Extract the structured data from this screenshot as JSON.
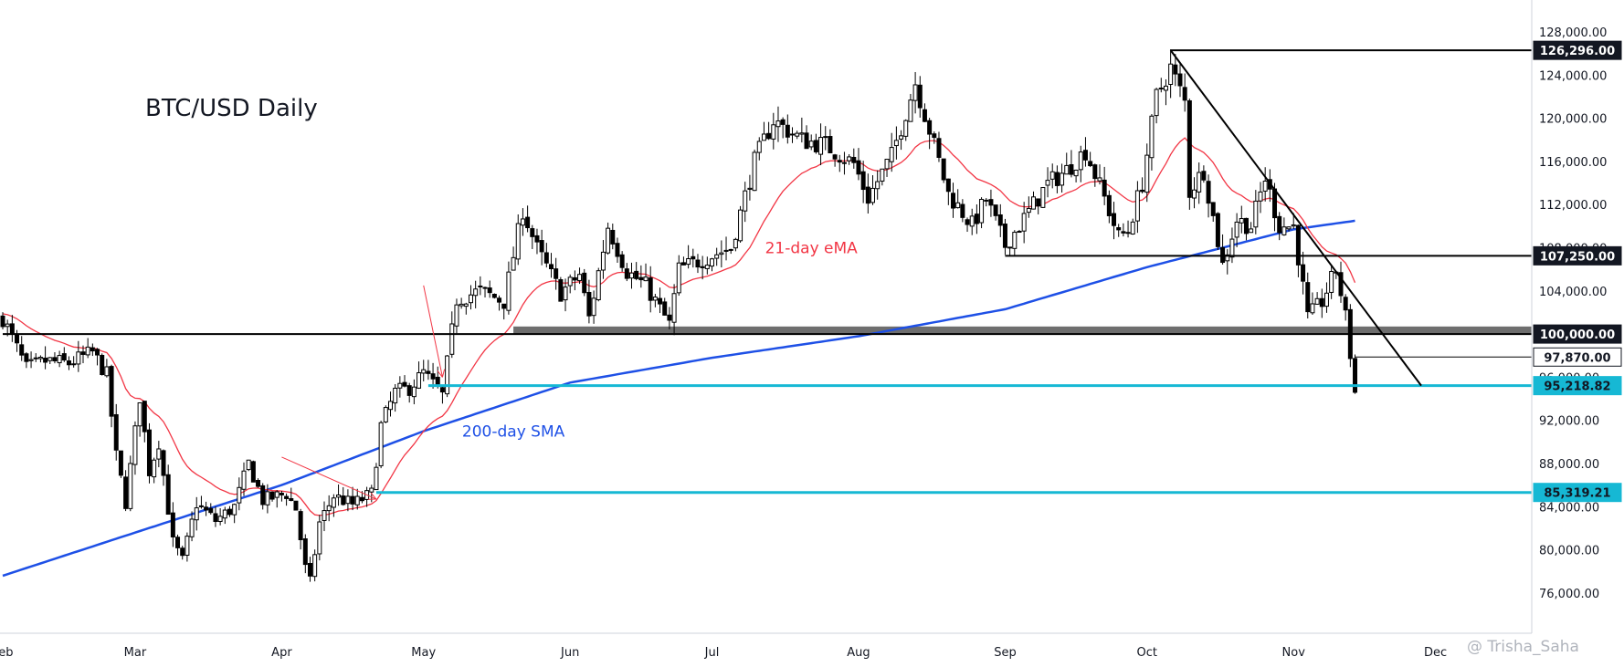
{
  "colors": {
    "candle": "#000000",
    "ema": "#f23645",
    "sma": "#1e50e6",
    "support": "#16b8d4",
    "zone": "#6e6e6e",
    "axis": "#cfd3db",
    "text": "#131722"
  },
  "watermark": "@ Trisha_Saha",
  "chart_data": {
    "type": "candlestick",
    "title": "BTC/USD Daily",
    "x_axis": {
      "ticks": [
        "Feb",
        "Mar",
        "Apr",
        "May",
        "Jun",
        "Jul",
        "Aug",
        "Sep",
        "Oct",
        "Nov",
        "Dec"
      ],
      "range": [
        "2025-02-01",
        "2025-12-01"
      ]
    },
    "y_axis": {
      "position": "right",
      "range": [
        72000,
        130000
      ],
      "ticks": [
        "128,000.00",
        "124,000.00",
        "120,000.00",
        "116,000.00",
        "112,000.00",
        "108,000.00",
        "104,000.00",
        "100,000.00",
        "96,000.00",
        "92,000.00",
        "88,000.00",
        "84,000.00",
        "80,000.00",
        "76,000.00"
      ],
      "tick_values": [
        128000,
        124000,
        120000,
        116000,
        112000,
        108000,
        104000,
        100000,
        96000,
        92000,
        88000,
        84000,
        80000,
        76000
      ]
    },
    "close_path": [
      [
        "2025-02-01",
        101500
      ],
      [
        "2025-02-06",
        96800
      ],
      [
        "2025-02-10",
        97500
      ],
      [
        "2025-02-15",
        97300
      ],
      [
        "2025-02-20",
        98300
      ],
      [
        "2025-02-23",
        96200
      ],
      [
        "2025-02-25",
        88700
      ],
      [
        "2025-02-27",
        84400
      ],
      [
        "2025-03-02",
        94200
      ],
      [
        "2025-03-04",
        87300
      ],
      [
        "2025-03-06",
        90000
      ],
      [
        "2025-03-09",
        80700
      ],
      [
        "2025-03-11",
        79000
      ],
      [
        "2025-03-14",
        84300
      ],
      [
        "2025-03-18",
        82700
      ],
      [
        "2025-03-22",
        84000
      ],
      [
        "2025-03-25",
        88000
      ],
      [
        "2025-03-28",
        84600
      ],
      [
        "2025-04-02",
        85200
      ],
      [
        "2025-04-04",
        83800
      ],
      [
        "2025-04-06",
        78300
      ],
      [
        "2025-04-07",
        77000
      ],
      [
        "2025-04-09",
        82500
      ],
      [
        "2025-04-12",
        85000
      ],
      [
        "2025-04-16",
        84200
      ],
      [
        "2025-04-20",
        85200
      ],
      [
        "2025-04-22",
        91500
      ],
      [
        "2025-04-25",
        94600
      ],
      [
        "2025-04-28",
        95000
      ],
      [
        "2025-05-01",
        96400
      ],
      [
        "2025-05-05",
        94300
      ],
      [
        "2025-05-08",
        103200
      ],
      [
        "2025-05-13",
        104000
      ],
      [
        "2025-05-18",
        103000
      ],
      [
        "2025-05-22",
        111500
      ],
      [
        "2025-05-25",
        107900
      ],
      [
        "2025-05-30",
        103800
      ],
      [
        "2025-06-03",
        105500
      ],
      [
        "2025-06-05",
        101500
      ],
      [
        "2025-06-09",
        110000
      ],
      [
        "2025-06-13",
        105800
      ],
      [
        "2025-06-17",
        104500
      ],
      [
        "2025-06-22",
        100900
      ],
      [
        "2025-06-24",
        106000
      ],
      [
        "2025-06-30",
        107100
      ],
      [
        "2025-07-05",
        108000
      ],
      [
        "2025-07-10",
        116000
      ],
      [
        "2025-07-14",
        119800
      ],
      [
        "2025-07-20",
        118000
      ],
      [
        "2025-07-25",
        117500
      ],
      [
        "2025-07-31",
        115800
      ],
      [
        "2025-08-03",
        112600
      ],
      [
        "2025-08-08",
        116500
      ],
      [
        "2025-08-13",
        123300
      ],
      [
        "2025-08-17",
        117500
      ],
      [
        "2025-08-20",
        113000
      ],
      [
        "2025-08-25",
        110100
      ],
      [
        "2025-08-28",
        112500
      ],
      [
        "2025-09-01",
        108200
      ],
      [
        "2025-09-05",
        110700
      ],
      [
        "2025-09-10",
        113900
      ],
      [
        "2025-09-14",
        115200
      ],
      [
        "2025-09-18",
        117000
      ],
      [
        "2025-09-22",
        112600
      ],
      [
        "2025-09-25",
        109000
      ],
      [
        "2025-09-27",
        109600
      ],
      [
        "2025-09-30",
        114000
      ],
      [
        "2025-10-03",
        122000
      ],
      [
        "2025-10-06",
        124700
      ],
      [
        "2025-10-09",
        121500
      ],
      [
        "2025-10-10",
        113200
      ],
      [
        "2025-10-13",
        115200
      ],
      [
        "2025-10-17",
        106400
      ],
      [
        "2025-10-20",
        110600
      ],
      [
        "2025-10-23",
        110000
      ],
      [
        "2025-10-26",
        114500
      ],
      [
        "2025-10-29",
        110000
      ],
      [
        "2025-11-01",
        110000
      ],
      [
        "2025-11-04",
        101500
      ],
      [
        "2025-11-07",
        103000
      ],
      [
        "2025-11-10",
        106000
      ],
      [
        "2025-11-12",
        101600
      ],
      [
        "2025-11-14",
        94600
      ]
    ],
    "indicators": [
      {
        "name": "21-day eMA",
        "color": "#f23645",
        "length": 21
      },
      {
        "name": "200-day SMA",
        "color": "#1e50e6",
        "length": 200
      }
    ],
    "sma_path": [
      [
        "2025-02-01",
        77600
      ],
      [
        "2025-03-01",
        81600
      ],
      [
        "2025-04-01",
        86000
      ],
      [
        "2025-05-01",
        91000
      ],
      [
        "2025-06-01",
        95500
      ],
      [
        "2025-07-01",
        97800
      ],
      [
        "2025-08-01",
        99800
      ],
      [
        "2025-09-01",
        102300
      ],
      [
        "2025-10-01",
        106200
      ],
      [
        "2025-11-01",
        109700
      ],
      [
        "2025-11-14",
        110500
      ]
    ],
    "price_labels": [
      {
        "value": 126296,
        "label": "126,296.00",
        "style": "dark"
      },
      {
        "value": 107250,
        "label": "107,250.00",
        "style": "dark"
      },
      {
        "value": 100000,
        "label": "100,000.00",
        "style": "dark"
      },
      {
        "value": 97870,
        "label": "97,870.00",
        "style": "light"
      },
      {
        "value": 95218.82,
        "label": "95,218.82",
        "style": "cyan"
      },
      {
        "value": 85319.21,
        "label": "85,319.21",
        "style": "cyan"
      }
    ],
    "levels": [
      {
        "value": 126296,
        "from": "2025-10-06",
        "color": "#000000",
        "width": 2
      },
      {
        "value": 107250,
        "from": "2025-09-01",
        "color": "#000000",
        "width": 2
      },
      {
        "value": 100000,
        "from": "2025-02-01",
        "color": "#000000",
        "width": 2
      },
      {
        "value": 97870,
        "from": "2025-11-14",
        "color": "#000000",
        "width": 1
      },
      {
        "value": 95218.82,
        "from": "2025-05-02",
        "color": "#16b8d4",
        "width": 3
      },
      {
        "value": 85319.21,
        "from": "2025-04-21",
        "color": "#16b8d4",
        "width": 3
      }
    ],
    "zone": {
      "from": "2025-05-20",
      "low": 100000,
      "high": 100700,
      "color": "#6e6e6e"
    },
    "trendline": {
      "start": [
        "2025-10-06",
        126296
      ],
      "end": [
        "2025-11-28",
        95218.82
      ],
      "color": "#000000"
    },
    "arrows": [
      {
        "from": [
          "2025-04-01",
          88600
        ],
        "to": [
          "2025-04-21",
          84700
        ],
        "color": "#f23645"
      },
      {
        "from": [
          "2025-05-01",
          104500
        ],
        "to": [
          "2025-05-05",
          96000
        ],
        "color": "#f23645"
      }
    ],
    "annotations": [
      {
        "text": "21-day eMA",
        "date": "2025-07-22",
        "value": 107500,
        "color": "#f23645"
      },
      {
        "text": "200-day SMA",
        "date": "2025-05-20",
        "value": 90500,
        "color": "#1e50e6"
      }
    ]
  }
}
